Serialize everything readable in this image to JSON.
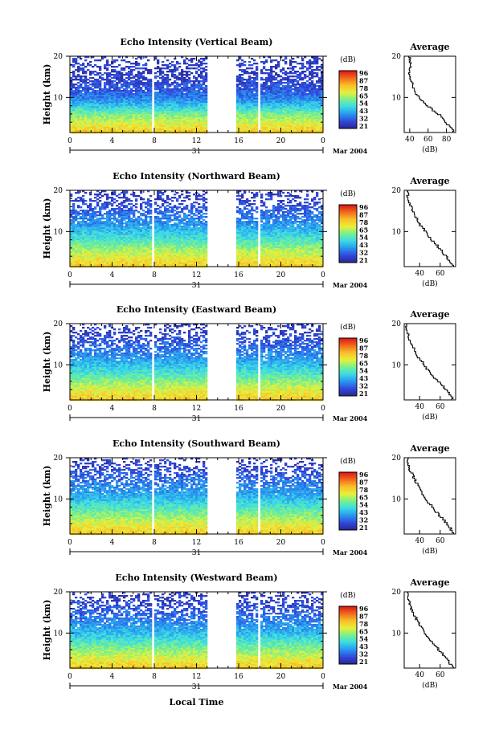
{
  "figure": {
    "xlabel": "Local Time",
    "date_label": "Mar 2004",
    "day_label": "31"
  },
  "chart_data": [
    {
      "type": "heatmap",
      "title": "Echo Intensity (Vertical Beam)",
      "ylabel": "Height (km)",
      "xlabel": "Local Time",
      "x_ticks": [
        "0",
        "4",
        "8",
        "12",
        "16",
        "20",
        "0"
      ],
      "y_ticks": [
        "10",
        "20"
      ],
      "xlim": [
        0,
        24
      ],
      "ylim": [
        1.5,
        20
      ],
      "colorbar": {
        "label": "(dB)",
        "ticks": [
          "96",
          "87",
          "78",
          "65",
          "54",
          "43",
          "32",
          "21"
        ],
        "range": [
          21,
          96
        ]
      },
      "data_gaps_hours": [
        [
          7.8,
          8.0
        ],
        [
          13.0,
          15.8
        ],
        [
          17.9,
          18.1
        ]
      ],
      "profile": {
        "title": "Average",
        "xlabel": "(dB)",
        "x_ticks": [
          "40",
          "60",
          "80"
        ],
        "y_ticks": [
          "10",
          "20"
        ],
        "xlim": [
          34,
          90
        ],
        "ylim": [
          1.5,
          20
        ],
        "heights_km": [
          2,
          4,
          6,
          8,
          10,
          12,
          14,
          16,
          18,
          20
        ],
        "values_db": [
          88,
          80,
          72,
          60,
          50,
          45,
          42,
          40,
          41,
          40
        ]
      }
    },
    {
      "type": "heatmap",
      "title": "Echo Intensity (Northward Beam)",
      "ylabel": "Height (km)",
      "xlabel": "Local Time",
      "x_ticks": [
        "0",
        "4",
        "8",
        "12",
        "16",
        "20",
        "0"
      ],
      "y_ticks": [
        "10",
        "20"
      ],
      "xlim": [
        0,
        24
      ],
      "ylim": [
        1.5,
        20
      ],
      "colorbar": {
        "label": "(dB)",
        "ticks": [
          "96",
          "87",
          "78",
          "65",
          "54",
          "43",
          "32",
          "21"
        ],
        "range": [
          21,
          96
        ]
      },
      "data_gaps_hours": [
        [
          7.8,
          8.0
        ],
        [
          13.0,
          15.8
        ],
        [
          17.9,
          18.1
        ]
      ],
      "profile": {
        "title": "Average",
        "xlabel": "(dB)",
        "x_ticks": [
          "40",
          "60"
        ],
        "y_ticks": [
          "10",
          "20"
        ],
        "xlim": [
          25,
          75
        ],
        "ylim": [
          1.5,
          20
        ],
        "heights_km": [
          2,
          4,
          6,
          8,
          10,
          12,
          14,
          16,
          18,
          20
        ],
        "values_db": [
          72,
          66,
          60,
          52,
          46,
          40,
          36,
          32,
          29,
          28
        ]
      }
    },
    {
      "type": "heatmap",
      "title": "Echo Intensity (Eastward Beam)",
      "ylabel": "Height (km)",
      "xlabel": "Local Time",
      "x_ticks": [
        "0",
        "4",
        "8",
        "12",
        "16",
        "20",
        "0"
      ],
      "y_ticks": [
        "10",
        "20"
      ],
      "xlim": [
        0,
        24
      ],
      "ylim": [
        1.5,
        20
      ],
      "colorbar": {
        "label": "(dB)",
        "ticks": [
          "96",
          "87",
          "78",
          "65",
          "54",
          "43",
          "32",
          "21"
        ],
        "range": [
          21,
          96
        ]
      },
      "data_gaps_hours": [
        [
          7.8,
          8.0
        ],
        [
          13.0,
          15.8
        ],
        [
          17.9,
          18.1
        ]
      ],
      "profile": {
        "title": "Average",
        "xlabel": "(dB)",
        "x_ticks": [
          "40",
          "60"
        ],
        "y_ticks": [
          "10",
          "20"
        ],
        "xlim": [
          25,
          75
        ],
        "ylim": [
          1.5,
          20
        ],
        "heights_km": [
          2,
          4,
          6,
          8,
          10,
          12,
          14,
          16,
          18,
          20
        ],
        "values_db": [
          72,
          66,
          59,
          51,
          45,
          39,
          35,
          31,
          28,
          27
        ]
      }
    },
    {
      "type": "heatmap",
      "title": "Echo Intensity (Southward Beam)",
      "ylabel": "Height (km)",
      "xlabel": "Local Time",
      "x_ticks": [
        "0",
        "4",
        "8",
        "12",
        "16",
        "20",
        "0"
      ],
      "y_ticks": [
        "10",
        "20"
      ],
      "xlim": [
        0,
        24
      ],
      "ylim": [
        1.5,
        20
      ],
      "colorbar": {
        "label": "(dB)",
        "ticks": [
          "96",
          "87",
          "78",
          "65",
          "54",
          "43",
          "32",
          "21"
        ],
        "range": [
          21,
          96
        ]
      },
      "data_gaps_hours": [
        [
          7.8,
          8.0
        ],
        [
          13.0,
          15.8
        ],
        [
          17.9,
          18.1
        ]
      ],
      "profile": {
        "title": "Average",
        "xlabel": "(dB)",
        "x_ticks": [
          "40",
          "60"
        ],
        "y_ticks": [
          "10",
          "20"
        ],
        "xlim": [
          25,
          75
        ],
        "ylim": [
          1.5,
          20
        ],
        "heights_km": [
          2,
          4,
          6,
          8,
          10,
          12,
          14,
          16,
          18,
          20
        ],
        "values_db": [
          73,
          67,
          60,
          53,
          46,
          41,
          37,
          33,
          29,
          28
        ]
      }
    },
    {
      "type": "heatmap",
      "title": "Echo Intensity (Westward Beam)",
      "ylabel": "Height (km)",
      "xlabel": "Local Time",
      "x_ticks": [
        "0",
        "4",
        "8",
        "12",
        "16",
        "20",
        "0"
      ],
      "y_ticks": [
        "10",
        "20"
      ],
      "xlim": [
        0,
        24
      ],
      "ylim": [
        1.5,
        20
      ],
      "colorbar": {
        "label": "(dB)",
        "ticks": [
          "96",
          "87",
          "78",
          "65",
          "54",
          "43",
          "32",
          "21"
        ],
        "range": [
          21,
          96
        ]
      },
      "data_gaps_hours": [
        [
          7.8,
          8.0
        ],
        [
          13.0,
          15.8
        ],
        [
          17.9,
          18.1
        ]
      ],
      "profile": {
        "title": "Average",
        "xlabel": "(dB)",
        "x_ticks": [
          "40",
          "60"
        ],
        "y_ticks": [
          "10",
          "20"
        ],
        "xlim": [
          25,
          75
        ],
        "ylim": [
          1.5,
          20
        ],
        "heights_km": [
          2,
          4,
          6,
          8,
          10,
          12,
          14,
          16,
          18,
          20
        ],
        "values_db": [
          72,
          66,
          59,
          52,
          45,
          40,
          36,
          32,
          29,
          28
        ]
      }
    }
  ]
}
